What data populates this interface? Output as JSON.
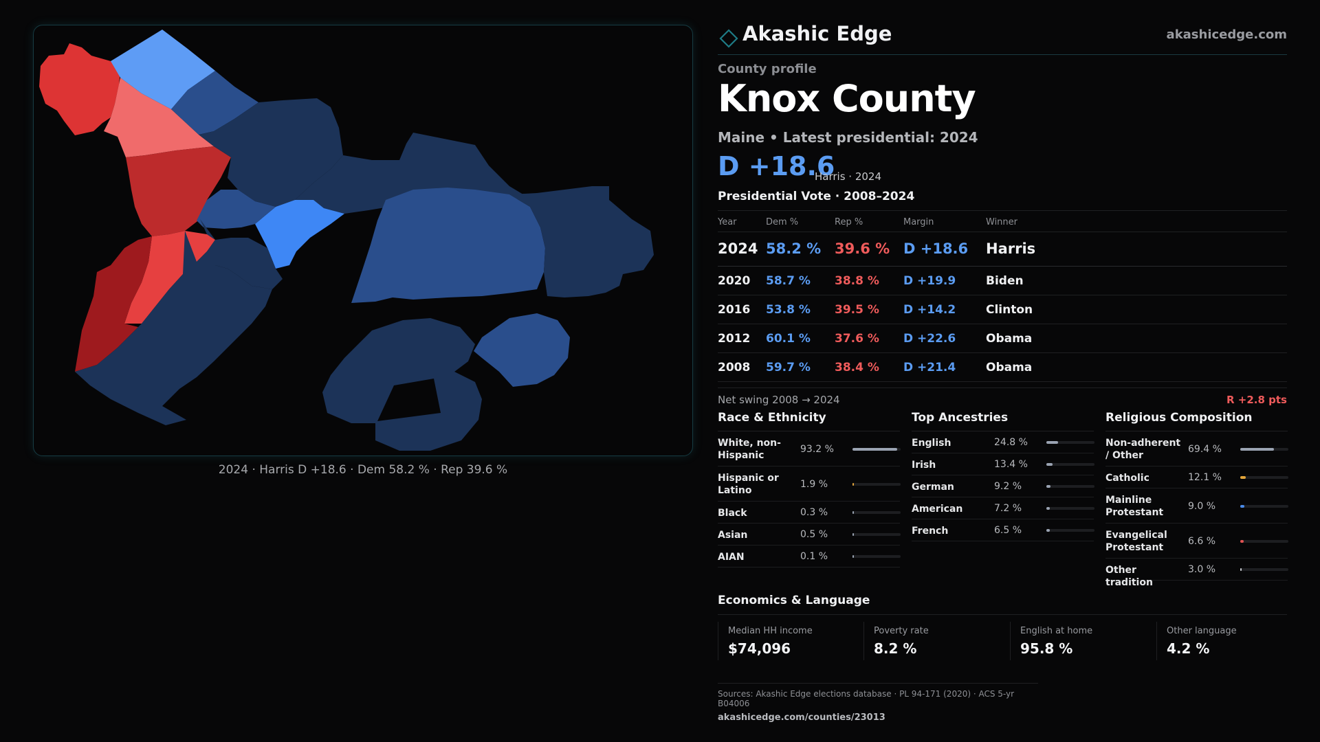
{
  "map": {
    "caption": "2024 · Harris D +18.6 · Dem 58.2 % · Rep 39.6 %",
    "colors": {
      "rep_strong": "#9e1a1e",
      "rep_mid": "#bd2b2c",
      "rep_light": "#e64040",
      "rep_pale": "#f06b6b",
      "dem_navy": "#1c3358",
      "dem_mid": "#2a4e8c",
      "dem_bright": "#3e87f5",
      "dem_sky": "#5e9cf5"
    }
  },
  "brand": {
    "name": "Akashic Edge",
    "url": "akashicedge.com",
    "logo_icon": "diamond-outline-icon",
    "accent": "#1e7c86"
  },
  "profile": {
    "eyebrow": "County profile",
    "title": "Knox County",
    "subtitle": "Maine • Latest presidential: 2024",
    "margin": "D +18.6",
    "margin_note": "Harris · 2024"
  },
  "vote": {
    "title": "Presidential Vote · 2008–2024",
    "headers": {
      "year": "Year",
      "dem": "Dem %",
      "rep": "Rep %",
      "margin": "Margin",
      "winner": "Winner"
    },
    "rows": [
      {
        "year": "2024",
        "dem": "58.2 %",
        "rep": "39.6 %",
        "margin": "D +18.6",
        "winner": "Harris"
      },
      {
        "year": "2020",
        "dem": "58.7 %",
        "rep": "38.8 %",
        "margin": "D +19.9",
        "winner": "Biden"
      },
      {
        "year": "2016",
        "dem": "53.8 %",
        "rep": "39.5 %",
        "margin": "D +14.2",
        "winner": "Clinton"
      },
      {
        "year": "2012",
        "dem": "60.1 %",
        "rep": "37.6 %",
        "margin": "D +22.6",
        "winner": "Obama"
      },
      {
        "year": "2008",
        "dem": "59.7 %",
        "rep": "38.4 %",
        "margin": "D +21.4",
        "winner": "Obama"
      }
    ],
    "swing_label": "Net swing 2008 → 2024",
    "swing_value": "R +2.8 pts"
  },
  "race": {
    "title": "Race & Ethnicity",
    "items": [
      {
        "label": "White, non-Hispanic",
        "value": "93.2 %",
        "fraction": 0.932,
        "color": "#9aa3b2"
      },
      {
        "label": "Hispanic or Latino",
        "value": "1.9 %",
        "fraction": 0.019,
        "color": "#e3a53a"
      },
      {
        "label": "Black",
        "value": "0.3 %",
        "fraction": 0.003,
        "color": "#9aa3b2"
      },
      {
        "label": "Asian",
        "value": "0.5 %",
        "fraction": 0.005,
        "color": "#9aa3b2"
      },
      {
        "label": "AIAN",
        "value": "0.1 %",
        "fraction": 0.001,
        "color": "#9aa3b2"
      }
    ]
  },
  "ancestry": {
    "title": "Top Ancestries",
    "items": [
      {
        "label": "English",
        "value": "24.8 %",
        "fraction": 0.248,
        "color": "#9aa3b2"
      },
      {
        "label": "Irish",
        "value": "13.4 %",
        "fraction": 0.134,
        "color": "#9aa3b2"
      },
      {
        "label": "German",
        "value": "9.2 %",
        "fraction": 0.092,
        "color": "#9aa3b2"
      },
      {
        "label": "American",
        "value": "7.2 %",
        "fraction": 0.072,
        "color": "#9aa3b2"
      },
      {
        "label": "French",
        "value": "6.5 %",
        "fraction": 0.065,
        "color": "#9aa3b2"
      }
    ]
  },
  "religion": {
    "title": "Religious Composition",
    "items": [
      {
        "label": "Non-adherent / Other",
        "value": "69.4 %",
        "fraction": 0.694,
        "color": "#9aa3b2"
      },
      {
        "label": "Catholic",
        "value": "12.1 %",
        "fraction": 0.121,
        "color": "#e3a53a"
      },
      {
        "label": "Mainline Protestant",
        "value": "9.0 %",
        "fraction": 0.09,
        "color": "#4a8ae8"
      },
      {
        "label": "Evangelical Protestant",
        "value": "6.6 %",
        "fraction": 0.066,
        "color": "#e05353"
      },
      {
        "label": "Other tradition",
        "value": "3.0 %",
        "fraction": 0.03,
        "color": "#c9cbd0"
      }
    ]
  },
  "economics": {
    "title": "Economics & Language",
    "items": [
      {
        "label": "Median HH income",
        "value": "$74,096"
      },
      {
        "label": "Poverty rate",
        "value": "8.2 %"
      },
      {
        "label": "English at home",
        "value": "95.8 %"
      },
      {
        "label": "Other language",
        "value": "4.2 %"
      }
    ]
  },
  "sources": {
    "text": "Sources: Akashic Edge elections database · PL 94-171 (2020) · ACS 5-yr B04006",
    "link": "akashicedge.com/counties/23013"
  }
}
